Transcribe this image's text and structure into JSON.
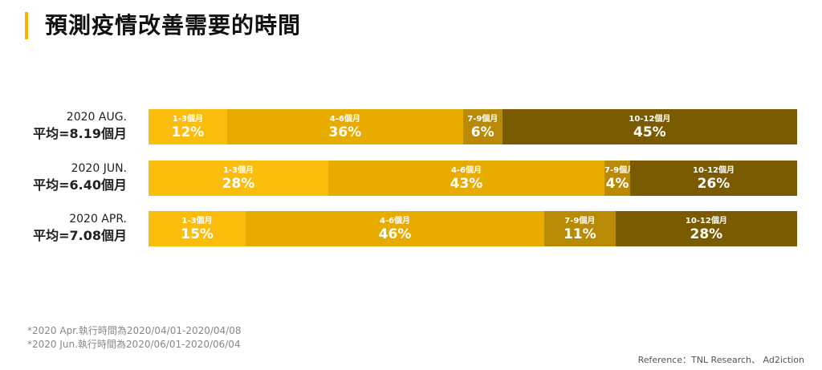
{
  "title": "預測疫情改善需要的時間",
  "colors": [
    "#fbbd0c",
    "#e8ac00",
    "#b98a06",
    "#7b5b02"
  ],
  "chart_data": {
    "type": "bar",
    "orientation": "horizontal-stacked-100",
    "categories": [
      "1-3個月",
      "4-6個月",
      "7-9個月",
      "10-12個月"
    ],
    "rows": [
      {
        "label": "2020 AUG.",
        "sublabel": "平均=8.19個月",
        "values": [
          12,
          36,
          6,
          45
        ]
      },
      {
        "label": "2020 JUN.",
        "sublabel": "平均=6.40個月",
        "values": [
          28,
          43,
          4,
          26
        ]
      },
      {
        "label": "2020 APR.",
        "sublabel": "平均=7.08個月",
        "values": [
          15,
          46,
          11,
          28
        ]
      }
    ],
    "unit": "%"
  },
  "notes": [
    "*2020 Apr.執行時間為2020/04/01-2020/04/08",
    "*2020 Jun.執行時間為2020/06/01-2020/06/04"
  ],
  "reference": "Reference：TNL Research、 Ad2iction"
}
